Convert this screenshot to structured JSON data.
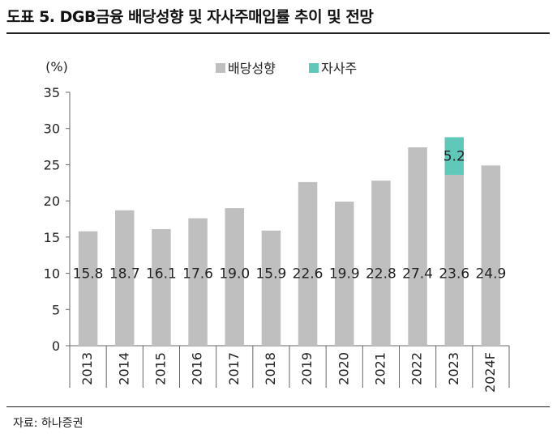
{
  "figure": {
    "title": "도표 5. DGB금융 배당성향 및 자사주매입률 추이 및 전망",
    "source": "자료: 하나증권"
  },
  "colors": {
    "payout_bar": "#bfbfbf",
    "buyback_bar": "#5fc8b9",
    "text": "#222222",
    "rule": "#222222"
  },
  "chart_data": {
    "type": "bar",
    "stacked": true,
    "unit_label": "(%)",
    "categories": [
      "2013",
      "2014",
      "2015",
      "2016",
      "2017",
      "2018",
      "2019",
      "2020",
      "2021",
      "2022",
      "2023",
      "2024F"
    ],
    "series": [
      {
        "name": "배당성향",
        "color": "#bfbfbf",
        "values": [
          15.8,
          18.7,
          16.1,
          17.6,
          19.0,
          15.9,
          22.6,
          19.9,
          22.8,
          27.4,
          23.6,
          24.9
        ],
        "labels": [
          "15.8",
          "18.7",
          "16.1",
          "17.6",
          "19.0",
          "15.9",
          "22.6",
          "19.9",
          "22.8",
          "27.4",
          "23.6",
          "24.9"
        ]
      },
      {
        "name": "자사주",
        "color": "#5fc8b9",
        "values": [
          null,
          null,
          null,
          null,
          null,
          null,
          null,
          null,
          null,
          null,
          5.2,
          null
        ],
        "labels": [
          "",
          "",
          "",
          "",
          "",
          "",
          "",
          "",
          "",
          "",
          "5.2",
          ""
        ]
      }
    ],
    "ylim": [
      0,
      35
    ],
    "yticks": [
      "0",
      "5",
      "10",
      "15",
      "20",
      "25",
      "30",
      "35"
    ],
    "grid": false,
    "legend_position": "top-center"
  }
}
